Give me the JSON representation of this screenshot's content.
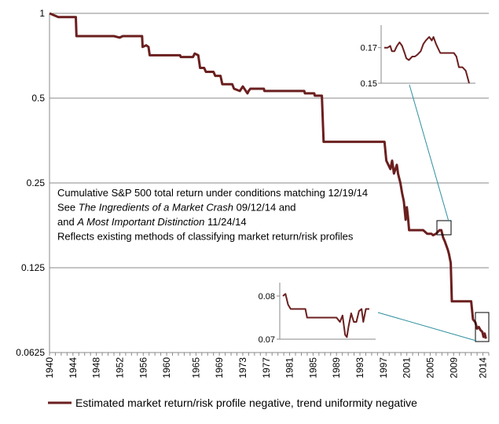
{
  "chart_data": {
    "type": "line",
    "title": "",
    "xlabel": "",
    "ylabel": "",
    "y_scale": "log",
    "ylim": [
      0.0625,
      1
    ],
    "xlim": [
      1940,
      2015
    ],
    "grid": "horizontal",
    "legend_position": "bottom",
    "y_ticks": [
      "1",
      "0.5",
      "0.25",
      "0.125",
      "0.0625"
    ],
    "y_tick_values": [
      1,
      0.5,
      0.25,
      0.125,
      0.0625
    ],
    "x_ticks": [
      "1940",
      "1944",
      "1948",
      "1952",
      "1956",
      "1960",
      "1965",
      "1969",
      "1973",
      "1977",
      "1981",
      "1985",
      "1989",
      "1993",
      "1997",
      "2001",
      "2005",
      "2009",
      "2014"
    ],
    "x_tick_values": [
      1940,
      1944,
      1948,
      1952,
      1956,
      1960,
      1965,
      1969,
      1973,
      1977,
      1981,
      1985,
      1989,
      1993,
      1997,
      2001,
      2005,
      2009,
      2014
    ],
    "annotation_lines": [
      {
        "parts": [
          {
            "text": "Cumulative S&P 500  total return under conditions matching 12/19/14",
            "italic": false
          }
        ]
      },
      {
        "parts": [
          {
            "text": "See ",
            "italic": false
          },
          {
            "text": "The Ingredients of a Market Crash",
            "italic": true
          },
          {
            "text": " 09/12/14  and",
            "italic": false
          }
        ]
      },
      {
        "parts": [
          {
            "text": "and ",
            "italic": false
          },
          {
            "text": "A Most Important Distinction",
            "italic": true
          },
          {
            "text": " 11/24/14",
            "italic": false
          }
        ]
      },
      {
        "parts": [
          {
            "text": "Reflects existing methods of classifying market return/risk profiles",
            "italic": false
          }
        ]
      }
    ],
    "series": [
      {
        "name": "Estimated market return/risk profile negative, trend uniformity negative",
        "color": "#6b1f1f",
        "points": [
          [
            1940.0,
            1.0
          ],
          [
            1941.5,
            0.97
          ],
          [
            1944.5,
            0.97
          ],
          [
            1944.6,
            0.83
          ],
          [
            1951.0,
            0.83
          ],
          [
            1952.0,
            0.82
          ],
          [
            1952.5,
            0.83
          ],
          [
            1954.0,
            0.83
          ],
          [
            1955.8,
            0.83
          ],
          [
            1955.9,
            0.76
          ],
          [
            1956.5,
            0.77
          ],
          [
            1956.9,
            0.76
          ],
          [
            1957.1,
            0.71
          ],
          [
            1962.3,
            0.71
          ],
          [
            1962.4,
            0.7
          ],
          [
            1964.5,
            0.7
          ],
          [
            1964.8,
            0.72
          ],
          [
            1965.4,
            0.71
          ],
          [
            1965.7,
            0.64
          ],
          [
            1966.4,
            0.64
          ],
          [
            1966.7,
            0.62
          ],
          [
            1968.0,
            0.62
          ],
          [
            1968.3,
            0.6
          ],
          [
            1969.2,
            0.6
          ],
          [
            1969.5,
            0.56
          ],
          [
            1971.2,
            0.56
          ],
          [
            1971.5,
            0.54
          ],
          [
            1972.5,
            0.53
          ],
          [
            1973.0,
            0.55
          ],
          [
            1973.8,
            0.52
          ],
          [
            1974.0,
            0.53
          ],
          [
            1974.3,
            0.54
          ],
          [
            1976.6,
            0.54
          ],
          [
            1976.7,
            0.53
          ],
          [
            1983.5,
            0.53
          ],
          [
            1983.6,
            0.52
          ],
          [
            1985.2,
            0.52
          ],
          [
            1985.3,
            0.51
          ],
          [
            1986.5,
            0.51
          ],
          [
            1986.8,
            0.35
          ],
          [
            1997.2,
            0.35
          ],
          [
            1997.5,
            0.3
          ],
          [
            1998.2,
            0.28
          ],
          [
            1998.5,
            0.3
          ],
          [
            1998.8,
            0.27
          ],
          [
            1999.3,
            0.29
          ],
          [
            1999.5,
            0.27
          ],
          [
            1999.9,
            0.25
          ],
          [
            2000.2,
            0.23
          ],
          [
            2000.5,
            0.215
          ],
          [
            2000.8,
            0.185
          ],
          [
            2001.0,
            0.205
          ],
          [
            2001.2,
            0.19
          ],
          [
            2001.4,
            0.17
          ],
          [
            2003.8,
            0.17
          ],
          [
            2004.5,
            0.165
          ],
          [
            2005.2,
            0.165
          ],
          [
            2005.5,
            0.163
          ],
          [
            2006.0,
            0.165
          ],
          [
            2006.6,
            0.17
          ],
          [
            2006.9,
            0.17
          ],
          [
            2007.2,
            0.16
          ],
          [
            2007.5,
            0.155
          ],
          [
            2008.0,
            0.145
          ],
          [
            2008.2,
            0.14
          ],
          [
            2008.5,
            0.13
          ],
          [
            2008.7,
            0.095
          ],
          [
            2012.0,
            0.095
          ],
          [
            2012.3,
            0.082
          ],
          [
            2012.7,
            0.08
          ],
          [
            2013.0,
            0.076
          ],
          [
            2013.3,
            0.077
          ],
          [
            2013.6,
            0.075
          ],
          [
            2013.9,
            0.074
          ],
          [
            2014.1,
            0.071
          ],
          [
            2014.3,
            0.073
          ],
          [
            2014.5,
            0.07
          ]
        ]
      }
    ],
    "insets": [
      {
        "name": "zoom-2005-2008",
        "y_ticks": [
          "0.17",
          "0.15"
        ],
        "y_tick_values": [
          0.17,
          0.15
        ],
        "ylim": [
          0.15,
          0.18
        ],
        "points": [
          [
            0,
            0.17
          ],
          [
            4,
            0.17
          ],
          [
            7,
            0.171
          ],
          [
            9,
            0.168
          ],
          [
            12,
            0.168
          ],
          [
            15,
            0.171
          ],
          [
            18,
            0.173
          ],
          [
            21,
            0.171
          ],
          [
            24,
            0.167
          ],
          [
            26,
            0.164
          ],
          [
            29,
            0.163
          ],
          [
            33,
            0.165
          ],
          [
            36,
            0.165
          ],
          [
            39,
            0.166
          ],
          [
            43,
            0.168
          ],
          [
            46,
            0.172
          ],
          [
            49,
            0.174
          ],
          [
            53,
            0.176
          ],
          [
            56,
            0.174
          ],
          [
            58,
            0.176
          ],
          [
            61,
            0.172
          ],
          [
            63,
            0.17
          ],
          [
            66,
            0.167
          ],
          [
            72,
            0.167
          ],
          [
            78,
            0.167
          ],
          [
            82,
            0.167
          ],
          [
            85,
            0.165
          ],
          [
            88,
            0.159
          ],
          [
            92,
            0.159
          ],
          [
            96,
            0.157
          ],
          [
            100,
            0.15
          ]
        ]
      },
      {
        "name": "zoom-2012-2014",
        "y_ticks": [
          "0.08",
          "0.07"
        ],
        "y_tick_values": [
          0.08,
          0.07
        ],
        "ylim": [
          0.07,
          0.082
        ],
        "points": [
          [
            0,
            0.08
          ],
          [
            3,
            0.0805
          ],
          [
            6,
            0.078
          ],
          [
            9,
            0.077
          ],
          [
            20,
            0.077
          ],
          [
            26,
            0.077
          ],
          [
            28,
            0.075
          ],
          [
            36,
            0.075
          ],
          [
            42,
            0.075
          ],
          [
            56,
            0.075
          ],
          [
            62,
            0.075
          ],
          [
            66,
            0.074
          ],
          [
            69,
            0.0755
          ],
          [
            72,
            0.071
          ],
          [
            74,
            0.0705
          ],
          [
            76,
            0.073
          ],
          [
            79,
            0.076
          ],
          [
            82,
            0.074
          ],
          [
            85,
            0.074
          ],
          [
            88,
            0.0765
          ],
          [
            91,
            0.077
          ],
          [
            93,
            0.074
          ],
          [
            96,
            0.077
          ],
          [
            100,
            0.077
          ]
        ]
      }
    ]
  }
}
